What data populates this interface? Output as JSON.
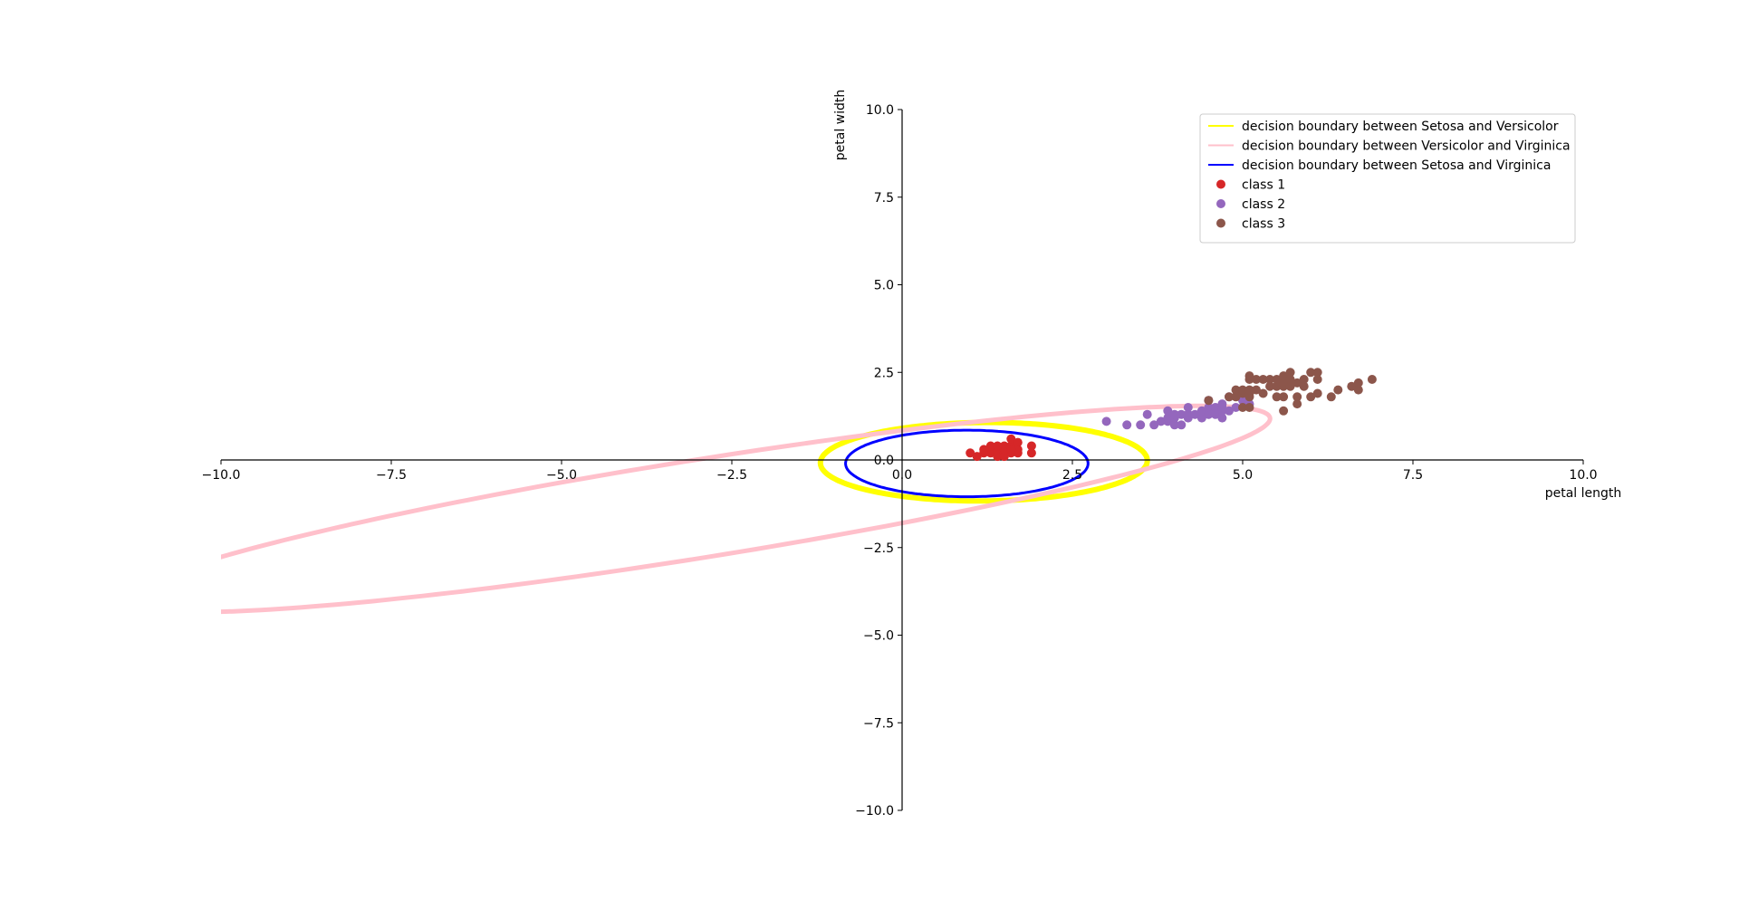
{
  "chart_data": {
    "type": "scatter",
    "title": "",
    "xlabel": "petal length",
    "ylabel": "petal width",
    "xlim": [
      -10,
      10
    ],
    "ylim": [
      -10,
      10
    ],
    "grid": false,
    "spines": "centered at origin",
    "legend_position": "upper-right",
    "x_ticks": [
      "−10.0",
      "−7.5",
      "−5.0",
      "−2.5",
      "0.0",
      "2.5",
      "5.0",
      "7.5",
      "10.0"
    ],
    "x_tick_values": [
      -10,
      -7.5,
      -5,
      -2.5,
      0,
      2.5,
      5,
      7.5,
      10
    ],
    "y_ticks": [
      "−10.0",
      "−7.5",
      "−5.0",
      "−2.5",
      "0.0",
      "2.5",
      "5.0",
      "7.5",
      "10.0"
    ],
    "y_tick_values": [
      -10,
      -7.5,
      -5,
      -2.5,
      0,
      2.5,
      5,
      7.5,
      10
    ],
    "boundaries": [
      {
        "name": "decision boundary between Setosa and Versicolor",
        "color": "#ffff00",
        "shape": "ellipse",
        "center": [
          1.2,
          -0.05
        ],
        "semi_axes": [
          2.4,
          1.12
        ],
        "rotation_deg": 1
      },
      {
        "name": "decision boundary between Versicolor and Virginica",
        "color": "#ffc0cb",
        "shape": "ellipse",
        "center": [
          -3.0,
          -1.4
        ],
        "semi_axes": [
          8.8,
          1.35
        ],
        "rotation_deg": 17.5
      },
      {
        "name": "decision boundary between Setosa and Virginica",
        "color": "#0000ff",
        "shape": "ellipse",
        "center": [
          0.95,
          -0.1
        ],
        "semi_axes": [
          1.78,
          0.95
        ],
        "rotation_deg": 0
      }
    ],
    "series": [
      {
        "name": "class 1",
        "color": "#d62728",
        "points": [
          [
            1.0,
            0.2
          ],
          [
            1.1,
            0.1
          ],
          [
            1.2,
            0.2
          ],
          [
            1.3,
            0.2
          ],
          [
            1.3,
            0.3
          ],
          [
            1.4,
            0.2
          ],
          [
            1.4,
            0.1
          ],
          [
            1.4,
            0.3
          ],
          [
            1.5,
            0.2
          ],
          [
            1.5,
            0.4
          ],
          [
            1.5,
            0.1
          ],
          [
            1.6,
            0.2
          ],
          [
            1.6,
            0.4
          ],
          [
            1.6,
            0.6
          ],
          [
            1.7,
            0.2
          ],
          [
            1.7,
            0.5
          ],
          [
            1.7,
            0.3
          ],
          [
            1.9,
            0.2
          ],
          [
            1.9,
            0.4
          ],
          [
            1.3,
            0.4
          ],
          [
            1.5,
            0.3
          ],
          [
            1.4,
            0.4
          ],
          [
            1.6,
            0.3
          ],
          [
            1.2,
            0.3
          ]
        ]
      },
      {
        "name": "class 2",
        "color": "#9467bd",
        "points": [
          [
            3.0,
            1.1
          ],
          [
            3.3,
            1.0
          ],
          [
            3.5,
            1.0
          ],
          [
            3.6,
            1.3
          ],
          [
            3.7,
            1.0
          ],
          [
            3.8,
            1.1
          ],
          [
            3.9,
            1.1
          ],
          [
            3.9,
            1.2
          ],
          [
            3.9,
            1.4
          ],
          [
            4.0,
            1.0
          ],
          [
            4.0,
            1.2
          ],
          [
            4.0,
            1.3
          ],
          [
            4.1,
            1.0
          ],
          [
            4.1,
            1.3
          ],
          [
            4.2,
            1.2
          ],
          [
            4.2,
            1.3
          ],
          [
            4.2,
            1.5
          ],
          [
            4.3,
            1.3
          ],
          [
            4.4,
            1.2
          ],
          [
            4.4,
            1.3
          ],
          [
            4.4,
            1.4
          ],
          [
            4.5,
            1.3
          ],
          [
            4.5,
            1.5
          ],
          [
            4.5,
            1.7
          ],
          [
            4.6,
            1.3
          ],
          [
            4.6,
            1.4
          ],
          [
            4.6,
            1.5
          ],
          [
            4.7,
            1.2
          ],
          [
            4.7,
            1.4
          ],
          [
            4.7,
            1.5
          ],
          [
            4.7,
            1.6
          ],
          [
            4.8,
            1.4
          ],
          [
            4.8,
            1.8
          ],
          [
            4.9,
            1.5
          ],
          [
            5.0,
            1.7
          ],
          [
            5.1,
            1.6
          ]
        ]
      },
      {
        "name": "class 3",
        "color": "#8c564b",
        "points": [
          [
            4.5,
            1.7
          ],
          [
            4.8,
            1.8
          ],
          [
            4.9,
            1.8
          ],
          [
            4.9,
            2.0
          ],
          [
            5.0,
            1.5
          ],
          [
            5.0,
            1.9
          ],
          [
            5.0,
            2.0
          ],
          [
            5.1,
            1.5
          ],
          [
            5.1,
            1.8
          ],
          [
            5.1,
            1.9
          ],
          [
            5.1,
            2.0
          ],
          [
            5.1,
            2.3
          ],
          [
            5.1,
            2.4
          ],
          [
            5.2,
            2.0
          ],
          [
            5.2,
            2.3
          ],
          [
            5.3,
            1.9
          ],
          [
            5.3,
            2.3
          ],
          [
            5.4,
            2.1
          ],
          [
            5.4,
            2.3
          ],
          [
            5.5,
            1.8
          ],
          [
            5.5,
            2.1
          ],
          [
            5.5,
            2.3
          ],
          [
            5.6,
            1.4
          ],
          [
            5.6,
            1.8
          ],
          [
            5.6,
            2.1
          ],
          [
            5.6,
            2.2
          ],
          [
            5.6,
            2.4
          ],
          [
            5.7,
            2.1
          ],
          [
            5.7,
            2.3
          ],
          [
            5.7,
            2.5
          ],
          [
            5.8,
            1.6
          ],
          [
            5.8,
            1.8
          ],
          [
            5.8,
            2.2
          ],
          [
            5.9,
            2.1
          ],
          [
            5.9,
            2.3
          ],
          [
            6.0,
            1.8
          ],
          [
            6.0,
            2.5
          ],
          [
            6.1,
            1.9
          ],
          [
            6.1,
            2.3
          ],
          [
            6.1,
            2.5
          ],
          [
            6.3,
            1.8
          ],
          [
            6.4,
            2.0
          ],
          [
            6.6,
            2.1
          ],
          [
            6.7,
            2.0
          ],
          [
            6.7,
            2.2
          ],
          [
            6.9,
            2.3
          ]
        ]
      }
    ]
  }
}
